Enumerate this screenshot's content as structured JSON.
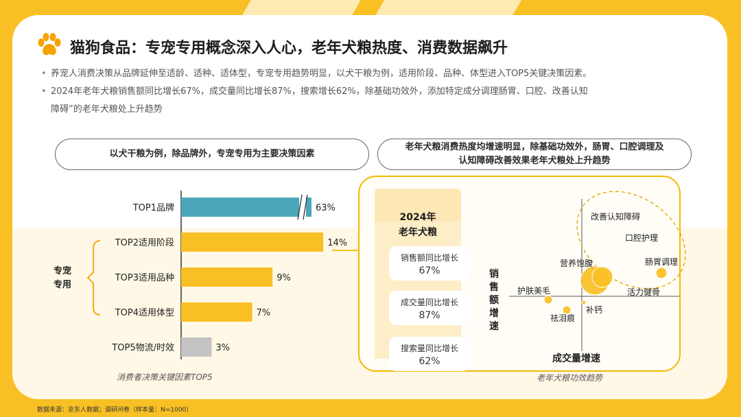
{
  "title": "猫狗食品：专宠专用概念深入人心，老年犬粮热度、消费数据飙升",
  "bullets": [
    "养宠人消费决策从品牌延伸至适龄、适种、适体型，专宠专用趋势明显，以犬干粮为例，适用阶段、品种、体型进入TOP5关键决策因素。",
    "2024年老年犬粮销售额同比增长67%，成交量同比增长87%，搜索增长62%，除基础功效外，添加特定成分调理肠胃、口腔、改善认知",
    "障碍”的老年犬粮处上升趋势"
  ],
  "pill_left": "以犬干粮为例，除品牌外，专宠专用为主要决策因素",
  "pill_right_line1": "老年犬粮消费热度均增速明显，除基础功效外，肠胃、口腔调理及",
  "pill_right_line2": "认知障碍改善效果老年犬粮处上升趋势",
  "bar_caption": "消费者决策关键因素TOP5",
  "bracket_label_1": "专宠",
  "bracket_label_2": "专用",
  "colors": {
    "accent": "#f9c025",
    "teal": "#4aa6b8",
    "gold": "#f9c025",
    "gray": "#c4c4c4"
  },
  "chart_data": [
    {
      "type": "bar",
      "orientation": "horizontal",
      "categories": [
        "TOP1品牌",
        "TOP2适用阶段",
        "TOP3适用品种",
        "TOP4适用体型",
        "TOP5物流/时效"
      ],
      "values": [
        63,
        14,
        9,
        7,
        3
      ],
      "value_labels": [
        "63%",
        "14%",
        "9%",
        "7%",
        "3%"
      ],
      "bar_colors": [
        "#4aa6b8",
        "#f9c025",
        "#f9c025",
        "#f9c025",
        "#c4c4c4"
      ],
      "axis_break_on": "TOP1品牌",
      "title": "消费者决策关键因素TOP5"
    },
    {
      "type": "scatter",
      "title": "老年犬粮功效趋势",
      "xlabel": "成交量增速",
      "ylabel": "销售额增速",
      "points": [
        {
          "label": "改善认知障碍"
        },
        {
          "label": "口腔护理"
        },
        {
          "label": "肠胃调理"
        },
        {
          "label": "营养饱腹"
        },
        {
          "label": "活力健骨"
        },
        {
          "label": "护肤美毛"
        },
        {
          "label": "祛泪痕"
        },
        {
          "label": "补钙"
        }
      ]
    }
  ],
  "table": {
    "header_line1": "2024年",
    "header_line2": "老年犬粮",
    "rows": [
      {
        "label": "销售额同比增长",
        "value": "67%"
      },
      {
        "label": "成交量同比增长",
        "value": "87%"
      },
      {
        "label": "搜索量同比增长",
        "value": "62%"
      }
    ]
  },
  "source": "数据来源：京东人数据；调研问卷（样本量：N=1000）"
}
